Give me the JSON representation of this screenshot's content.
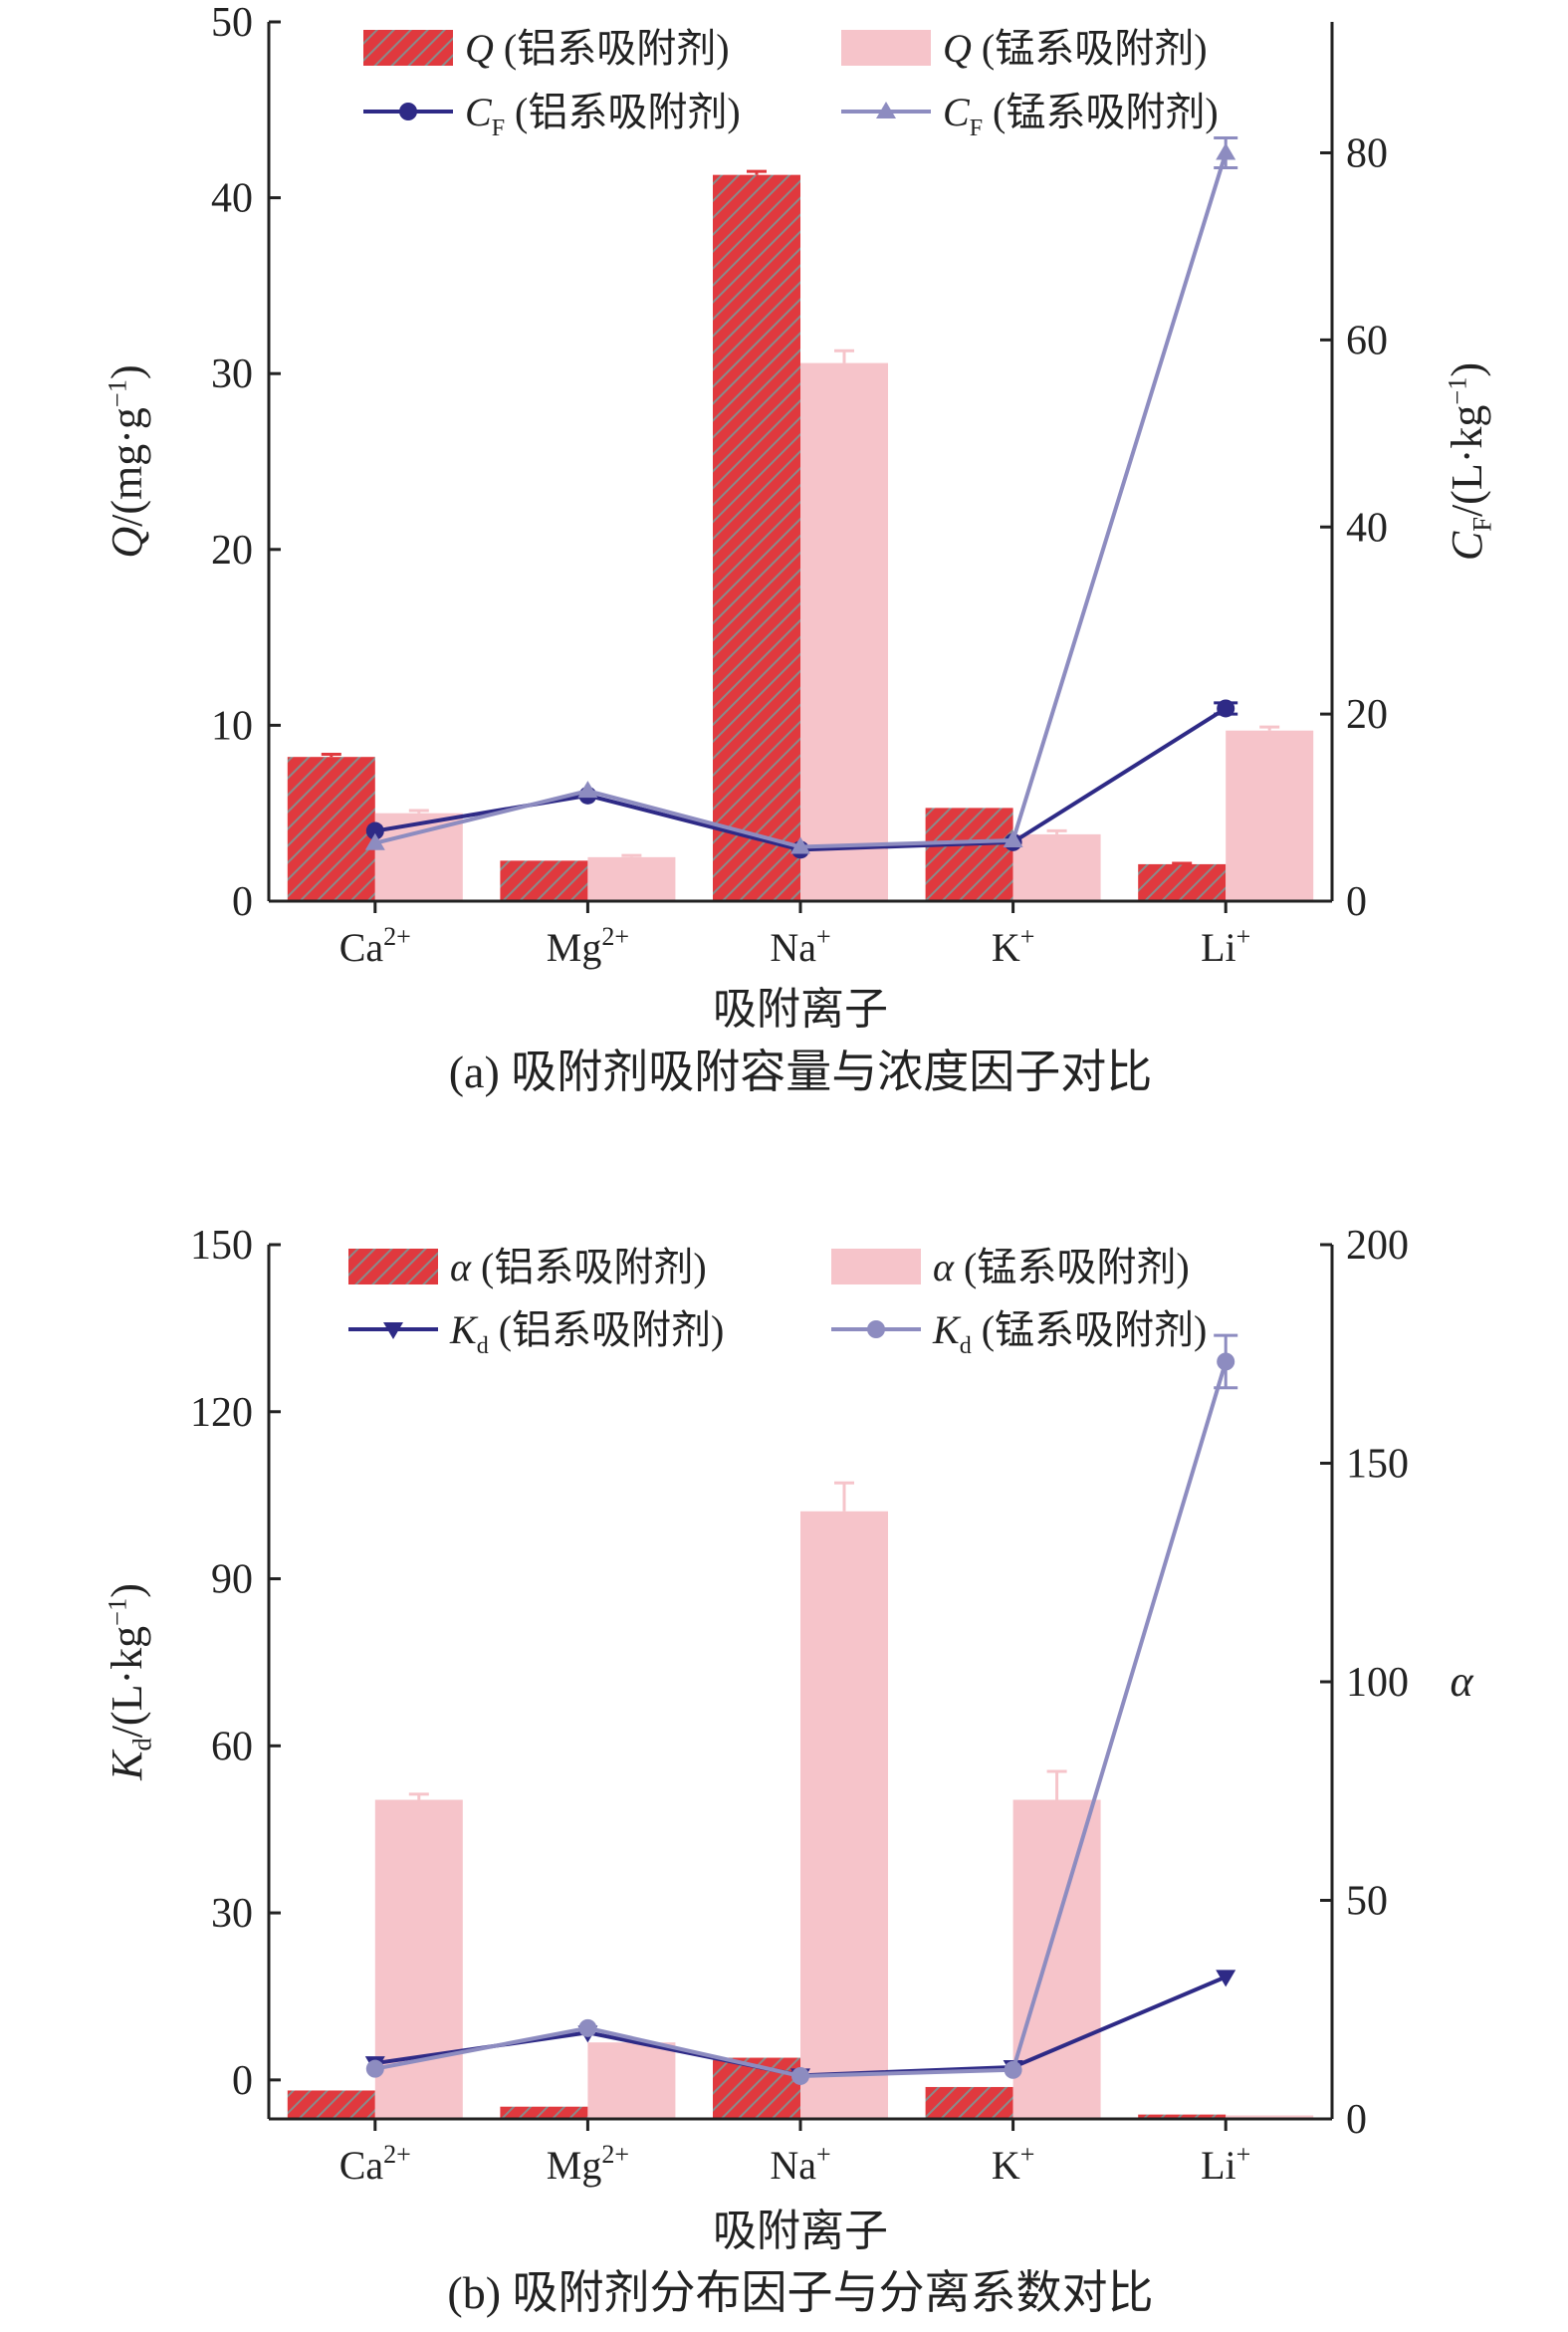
{
  "chart_data": [
    {
      "type": "bar",
      "categories": [
        "Ca²⁺",
        "Mg²⁺",
        "Na⁺",
        "K⁺",
        "Li⁺"
      ],
      "xlabel": "吸附离子",
      "ylabel": "Q/(mg·g⁻¹)",
      "y2label": "C_F/(L·kg⁻¹)",
      "ylabel_parts": {
        "sym": "Q",
        "unit": "/(mg·g",
        "sup": "−1",
        "close": ")"
      },
      "y2label_parts": {
        "sym": "C",
        "sub": "F",
        "unit": "/(L·kg",
        "sup": "−1",
        "close": ")"
      },
      "ylim": [
        0,
        50
      ],
      "y2lim": [
        0,
        94
      ],
      "yticks": [
        0,
        10,
        20,
        30,
        40,
        50
      ],
      "y2ticks": [
        0,
        20,
        40,
        60,
        80
      ],
      "caption": "(a) 吸附剂吸附容量与浓度因子对比",
      "bars": [
        {
          "name": "Q (铝系吸附剂)",
          "axis": "left",
          "values": [
            8.2,
            2.3,
            41.3,
            5.3,
            2.1
          ],
          "errors": [
            0.15,
            0,
            0.2,
            0,
            0.05
          ],
          "color": "#e0393e",
          "hatch": true
        },
        {
          "name": "Q (锰系吸附剂)",
          "axis": "left",
          "values": [
            5.0,
            2.5,
            30.6,
            3.8,
            9.7
          ],
          "errors": [
            0.15,
            0.1,
            0.7,
            0.2,
            0.2
          ],
          "color": "#f6c4ca",
          "hatch": false
        }
      ],
      "lines": [
        {
          "name": "C_F (铝系吸附剂)",
          "axis": "right",
          "values": [
            7.5,
            11.3,
            5.5,
            6.3,
            20.6
          ],
          "errors": [
            0,
            0,
            0,
            0,
            0.6
          ],
          "color": "#2e2a86",
          "marker": "circle"
        },
        {
          "name": "C_F (锰系吸附剂)",
          "axis": "right",
          "values": [
            6.2,
            11.8,
            5.8,
            6.5,
            80.0
          ],
          "errors": [
            0,
            0,
            0,
            0,
            1.6
          ],
          "color": "#8d8cc0",
          "marker": "triangle-up"
        }
      ],
      "legend": [
        "Q (铝系吸附剂)",
        "Q (锰系吸附剂)",
        "C_F (铝系吸附剂)",
        "C_F (锰系吸附剂)"
      ]
    },
    {
      "type": "bar",
      "categories": [
        "Ca²⁺",
        "Mg²⁺",
        "Na⁺",
        "K⁺",
        "Li⁺"
      ],
      "xlabel": "吸附离子",
      "ylabel": "K_d/(L·kg⁻¹)",
      "y2label": "α",
      "ylabel_parts": {
        "sym": "K",
        "sub": "d",
        "unit": "/(L·kg",
        "sup": "−1",
        "close": ")"
      },
      "y2label_parts": {
        "sym": "α"
      },
      "ylim": [
        -7,
        150
      ],
      "y2lim": [
        0,
        200
      ],
      "yticks": [
        0,
        30,
        60,
        90,
        120,
        150
      ],
      "y2ticks": [
        0,
        50,
        100,
        150,
        200
      ],
      "caption": "(b) 吸附剂分布因子与分离系数对比",
      "bars": [
        {
          "name": "α (铝系吸附剂)",
          "axis": "right",
          "values": [
            6.5,
            2.8,
            14.0,
            7.3,
            1.0
          ],
          "errors": [
            0,
            0,
            0,
            0,
            0
          ],
          "color": "#e0393e",
          "hatch": true
        },
        {
          "name": "α (锰系吸附剂)",
          "axis": "right",
          "values": [
            73,
            17.5,
            139,
            73,
            0.8
          ],
          "errors": [
            1.3,
            0,
            6.5,
            6.5,
            0
          ],
          "color": "#f6c4ca",
          "hatch": false
        }
      ],
      "lines": [
        {
          "name": "K_d (铝系吸附剂)",
          "axis": "left",
          "values": [
            3.0,
            8.5,
            0.8,
            2.3,
            18.5
          ],
          "errors": [
            0,
            0,
            0,
            0,
            0
          ],
          "color": "#2e2a86",
          "marker": "triangle-down"
        },
        {
          "name": "K_d (锰系吸附剂)",
          "axis": "left",
          "values": [
            2.0,
            9.3,
            0.7,
            1.8,
            129
          ],
          "errors": [
            0,
            0,
            0,
            0,
            4.7
          ],
          "color": "#8d8cc0",
          "marker": "circle"
        }
      ],
      "legend": [
        "α (铝系吸附剂)",
        "α (锰系吸附剂)",
        "K_d (铝系吸附剂)",
        "K_d (锰系吸附剂)"
      ]
    }
  ]
}
